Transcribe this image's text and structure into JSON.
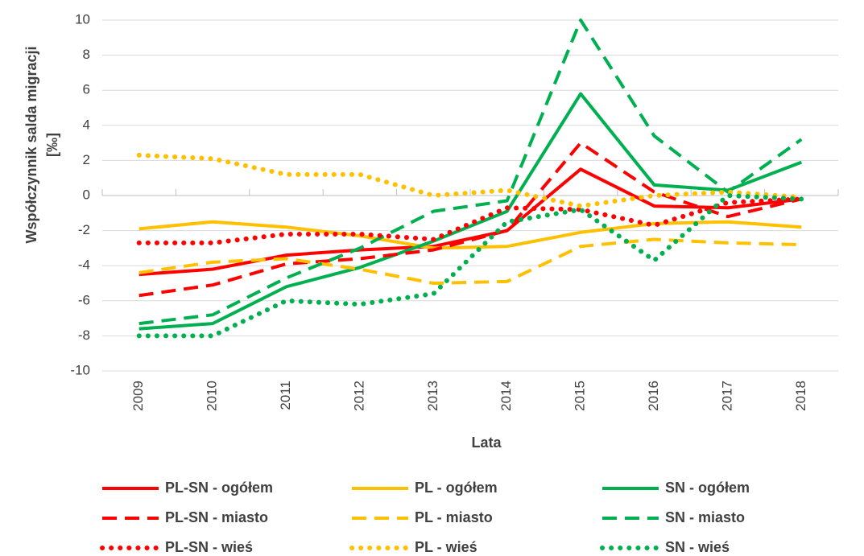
{
  "chart_data": {
    "type": "line",
    "ylabel": [
      "Współczynnik salda migracji",
      "[‰]"
    ],
    "xlabel": "Lata",
    "categories": [
      "2009",
      "2010",
      "2011",
      "2012",
      "2013",
      "2014",
      "2015",
      "2016",
      "2017",
      "2018"
    ],
    "ylim": [
      -10,
      10
    ],
    "yticks": [
      -10,
      -8,
      -6,
      -4,
      -2,
      0,
      2,
      4,
      6,
      8,
      10
    ],
    "grid": true,
    "legend": "bottom",
    "series": [
      {
        "name": "PL-SN - ogółem",
        "color": "#ff0000",
        "line_style": "solid",
        "values": [
          -4.5,
          -4.2,
          -3.4,
          -3.1,
          -2.9,
          -2.0,
          1.5,
          -0.6,
          -0.7,
          -0.2
        ]
      },
      {
        "name": "PL - ogółem",
        "color": "#ffc000",
        "line_style": "solid",
        "values": [
          -1.9,
          -1.5,
          -1.8,
          -2.3,
          -3.0,
          -2.9,
          -2.1,
          -1.6,
          -1.5,
          -1.8
        ]
      },
      {
        "name": "SN - ogółem",
        "color": "#00b050",
        "line_style": "solid",
        "values": [
          -7.6,
          -7.3,
          -5.2,
          -4.1,
          -2.6,
          -0.9,
          5.8,
          0.6,
          0.3,
          1.9
        ]
      },
      {
        "name": "PL-SN - miasto",
        "color": "#ff0000",
        "line_style": "dashed",
        "values": [
          -5.7,
          -5.1,
          -3.9,
          -3.6,
          -3.1,
          -2.0,
          3.0,
          0.2,
          -1.2,
          -0.2
        ]
      },
      {
        "name": "PL - miasto",
        "color": "#ffc000",
        "line_style": "dashed",
        "values": [
          -4.4,
          -3.8,
          -3.6,
          -4.2,
          -5.0,
          -4.9,
          -2.9,
          -2.5,
          -2.7,
          -2.8
        ]
      },
      {
        "name": "SN - miasto",
        "color": "#00b050",
        "line_style": "dashed",
        "values": [
          -7.3,
          -6.8,
          -4.7,
          -3.0,
          -0.9,
          -0.3,
          10.0,
          3.4,
          0.2,
          3.2
        ]
      },
      {
        "name": "PL-SN - wieś",
        "color": "#ff0000",
        "line_style": "dotted",
        "values": [
          -2.7,
          -2.7,
          -2.2,
          -2.2,
          -2.5,
          -0.7,
          -0.8,
          -1.7,
          -0.4,
          -0.2
        ]
      },
      {
        "name": "PL - wieś",
        "color": "#ffc000",
        "line_style": "dotted",
        "values": [
          2.3,
          2.1,
          1.2,
          1.2,
          0.0,
          0.3,
          -0.6,
          0.0,
          0.2,
          -0.1
        ]
      },
      {
        "name": "SN - wieś",
        "color": "#00b050",
        "line_style": "dotted",
        "values": [
          -8.0,
          -8.0,
          -6.0,
          -6.2,
          -5.6,
          -1.5,
          -0.8,
          -3.7,
          0.0,
          -0.2
        ]
      }
    ]
  }
}
